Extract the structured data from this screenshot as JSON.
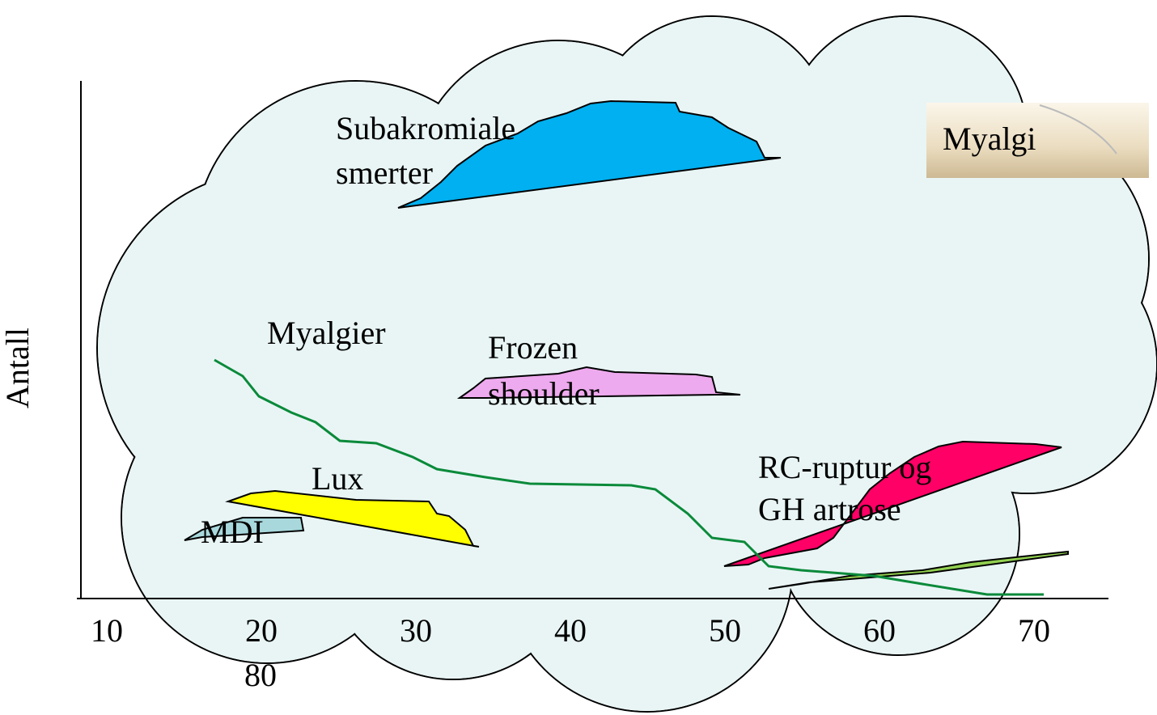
{
  "axis": {
    "y_label": "Antall",
    "x_ticks": [
      "10",
      "20",
      "30",
      "40",
      "50",
      "60",
      "70"
    ],
    "x_tick_wrap": "80"
  },
  "labels": {
    "subakromiale": [
      "Subakromiale",
      "smerter"
    ],
    "myalgier": "Myalgier",
    "frozen": [
      "Frozen",
      "shoulder"
    ],
    "lux": "Lux",
    "mdi": "MDI",
    "rc": [
      "RC-ruptur og",
      "GH artrose"
    ],
    "myalgi": "Myalgi"
  }
}
